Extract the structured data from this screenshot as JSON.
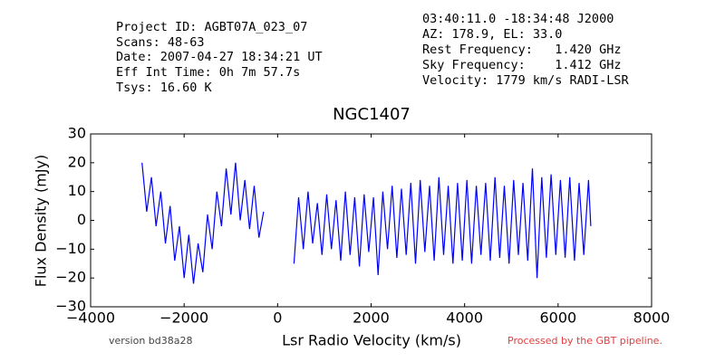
{
  "header": {
    "left": [
      "Project ID: AGBT07A_023_07",
      "Scans: 48-63",
      "Date: 2007-04-27 18:34:21 UT",
      "Eff Int Time: 0h 7m 57.7s",
      "Tsys: 16.60 K"
    ],
    "right": [
      "03:40:11.0 -18:34:48 J2000",
      "AZ: 178.9, EL: 33.0",
      "Rest Frequency:   1.420 GHz",
      "Sky Frequency:    1.412 GHz",
      "Velocity: 1779 km/s RADI-LSR"
    ]
  },
  "footer": {
    "version": "version bd38a28",
    "pipeline": "Processed by the GBT pipeline."
  },
  "chart_data": {
    "type": "line",
    "title": "NGC1407",
    "x_label": "Lsr Radio Velocity (km/s)",
    "y_label": "Flux Density (mJy)",
    "xlim": [
      -4000,
      8000
    ],
    "ylim": [
      -30,
      30
    ],
    "xticks": [
      {
        "value": -4000,
        "label": "−4000"
      },
      {
        "value": -2000,
        "label": "−2000"
      },
      0,
      2000,
      4000,
      6000,
      8000
    ],
    "yticks": [
      {
        "value": -30,
        "label": "−30"
      },
      {
        "value": -20,
        "label": "−20"
      },
      {
        "value": -10,
        "label": "−10"
      },
      0,
      10,
      20,
      30
    ],
    "x": [
      -2900,
      -2800,
      -2700,
      -2600,
      -2500,
      -2400,
      -2300,
      -2200,
      -2100,
      -2000,
      -1900,
      -1800,
      -1700,
      -1600,
      -1500,
      -1400,
      -1300,
      -1200,
      -1100,
      -1000,
      -900,
      -800,
      -700,
      -600,
      -500,
      -400,
      -300,
      -100,
      350,
      450,
      550,
      650,
      750,
      850,
      950,
      1050,
      1150,
      1250,
      1350,
      1450,
      1550,
      1650,
      1750,
      1850,
      1950,
      2050,
      2150,
      2250,
      2350,
      2450,
      2550,
      2650,
      2750,
      2850,
      2950,
      3050,
      3150,
      3250,
      3350,
      3450,
      3550,
      3650,
      3750,
      3850,
      3950,
      4050,
      4150,
      4250,
      4350,
      4450,
      4550,
      4650,
      4750,
      4850,
      4950,
      5050,
      5150,
      5250,
      5350,
      5450,
      5550,
      5650,
      5750,
      5850,
      5950,
      6050,
      6150,
      6250,
      6350,
      6450,
      6550,
      6650,
      6700
    ],
    "series": [
      {
        "name": "NGC1407",
        "color": "#0000ff",
        "values": [
          20,
          3,
          15,
          -2,
          10,
          -8,
          5,
          -14,
          -2,
          -20,
          -5,
          -22,
          -8,
          -18,
          2,
          -10,
          10,
          -2,
          18,
          2,
          20,
          0,
          14,
          -3,
          12,
          -6,
          3,
          null,
          -15,
          8,
          -10,
          10,
          -8,
          6,
          -12,
          9,
          -10,
          7,
          -14,
          10,
          -12,
          8,
          -16,
          9,
          -11,
          8,
          -19,
          10,
          -10,
          12,
          -13,
          11,
          -12,
          13,
          -15,
          14,
          -11,
          12,
          -14,
          15,
          -12,
          12,
          -15,
          13,
          -14,
          14,
          -15,
          12,
          -12,
          13,
          -14,
          15,
          -13,
          12,
          -15,
          14,
          -12,
          13,
          -14,
          18,
          -20,
          15,
          -13,
          16,
          -12,
          14,
          -13,
          15,
          -14,
          13,
          -12,
          14,
          -2
        ]
      }
    ]
  }
}
